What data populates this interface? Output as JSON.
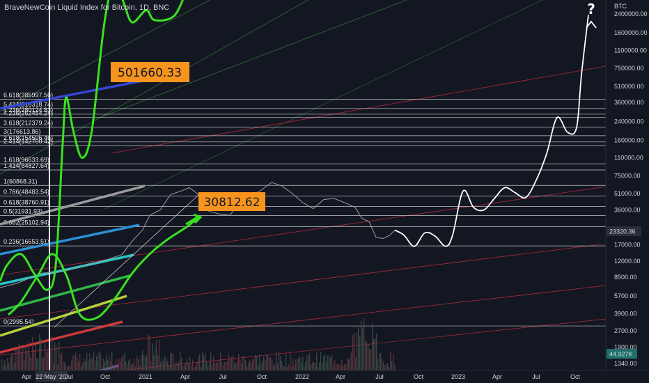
{
  "header": {
    "title": "BraveNewCoin Liquid Index for Bitcoin, 1D, BNC"
  },
  "colors": {
    "background": "#131722",
    "text": "#d1d4dc",
    "fib_line": "#c8c8c8",
    "forecast_white": "#ffffff",
    "forecast_green": "#39e21f",
    "channel_red": "#b22b36",
    "channel_green": "#3b9a3b",
    "price_candles": "#9aa0a6",
    "callout_bg": "#f7941d",
    "price_badge_bg": "#2a2e39",
    "volume_badge_bg": "#1f6f6c"
  },
  "chart_data": {
    "type": "line",
    "y_scale": "log",
    "y_unit": "BTC",
    "x_ticks": [
      "Apr",
      "22 May '20",
      "Jul",
      "Oct",
      "2021",
      "Apr",
      "Jul",
      "Oct",
      "2022",
      "Apr",
      "Jul",
      "Oct",
      "2023",
      "Apr",
      "Jul",
      "Oct"
    ],
    "y_ticks": [
      2400000,
      1600000,
      1100000,
      750000,
      510000,
      360000,
      240000,
      160000,
      110000,
      75000,
      51000,
      36000,
      23320.36,
      17000,
      12000,
      8500,
      5700,
      3900,
      2700,
      1900,
      1340
    ],
    "y_tick_labels": [
      "2400000.00",
      "1600000.00",
      "1100000.00",
      "750000.00",
      "510000.00",
      "360000.00",
      "240000.00",
      "160000.00",
      "110000.00",
      "75000.00",
      "51000.00",
      "36000.00",
      "23320.36",
      "17000.00",
      "12000.00",
      "8500.00",
      "5700.00",
      "3900.00",
      "2700.00",
      "1900.00",
      "1340.00"
    ],
    "current_price": "23320.36",
    "volume_label": "44.927K",
    "fib_levels": [
      {
        "ratio": "6.618",
        "value": 385997.56,
        "label": "6.618(385997.56)"
      },
      {
        "ratio": "5.414",
        "value": 316318.74,
        "label": "5.414(316318.74)"
      },
      {
        "ratio": "4.236",
        "value": 280124.83,
        "label": "4.236(280124.83)"
      },
      {
        "ratio": "4.236",
        "value": 262454.24,
        "label": "4.236(262454.24)"
      },
      {
        "ratio": "3.618",
        "value": 212379.24,
        "label": "3.618(212379.24)"
      },
      {
        "ratio": "3",
        "value": 176613.86,
        "label": "3(176613.86)"
      },
      {
        "ratio": "2.618",
        "value": 154506.46,
        "label": "2.618(154506.46)"
      },
      {
        "ratio": "2.414",
        "value": 142700.42,
        "label": "2.414(142700.42)"
      },
      {
        "ratio": "1.618",
        "value": 96633.69,
        "label": "1.618(96633.69)"
      },
      {
        "ratio": "1.414",
        "value": 84827.64,
        "label": "1.414(84827.64)"
      },
      {
        "ratio": "1",
        "value": 60868.31,
        "label": "1(60868.31)"
      },
      {
        "ratio": "0.786",
        "value": 48483.54,
        "label": "0.786(48483.54)"
      },
      {
        "ratio": "0.618",
        "value": 38760.91,
        "label": "0.618(38760.91)"
      },
      {
        "ratio": "0.5",
        "value": 31931.93,
        "label": "0.5(31931.93)"
      },
      {
        "ratio": "0.382",
        "value": 25102.94,
        "label": "0.382(25102.94)"
      },
      {
        "ratio": "0.236",
        "value": 16653.51,
        "label": "0.236(16653.51)"
      },
      {
        "ratio": "0",
        "value": 2995.54,
        "label": "0(2995.54)"
      }
    ],
    "annotations": [
      {
        "text": "501660.33",
        "value": 501660.33
      },
      {
        "text": "30812.62",
        "value": 30812.62
      },
      {
        "text": "?"
      }
    ],
    "series": [
      {
        "role": "price",
        "points": [
          [
            0,
            6800
          ],
          [
            25,
            7500
          ],
          [
            60,
            9300
          ],
          [
            90,
            9600
          ],
          [
            120,
            10800
          ],
          [
            150,
            12200
          ],
          [
            175,
            13800
          ],
          [
            190,
            18500
          ],
          [
            205,
            23500
          ],
          [
            215,
            32000
          ],
          [
            230,
            36000
          ],
          [
            245,
            50000
          ],
          [
            260,
            54000
          ],
          [
            272,
            58000
          ],
          [
            285,
            50000
          ],
          [
            300,
            35000
          ],
          [
            315,
            33000
          ],
          [
            330,
            32000
          ],
          [
            345,
            43000
          ],
          [
            360,
            48000
          ],
          [
            375,
            55000
          ],
          [
            390,
            65000
          ],
          [
            405,
            60000
          ],
          [
            420,
            51000
          ],
          [
            435,
            42000
          ],
          [
            450,
            37000
          ],
          [
            465,
            45000
          ],
          [
            480,
            46000
          ],
          [
            495,
            42000
          ],
          [
            510,
            38000
          ],
          [
            520,
            30000
          ],
          [
            530,
            28000
          ],
          [
            540,
            20000
          ],
          [
            550,
            19500
          ],
          [
            560,
            21000
          ],
          [
            567,
            23320.36
          ]
        ]
      },
      {
        "role": "forecast-white",
        "points": [
          [
            567,
            23320.36
          ],
          [
            580,
            21000
          ],
          [
            595,
            16500
          ],
          [
            610,
            22000
          ],
          [
            625,
            20500
          ],
          [
            640,
            16500
          ],
          [
            650,
            21000
          ],
          [
            665,
            54000
          ],
          [
            680,
            38000
          ],
          [
            695,
            36000
          ],
          [
            710,
            46000
          ],
          [
            725,
            58000
          ],
          [
            740,
            52000
          ],
          [
            755,
            47000
          ],
          [
            770,
            68000
          ],
          [
            785,
            120000
          ],
          [
            800,
            260000
          ],
          [
            815,
            190000
          ],
          [
            828,
            210000
          ],
          [
            835,
            650000
          ],
          [
            845,
            2350000
          ]
        ]
      },
      {
        "role": "forecast-green-2020",
        "points": [
          [
            0,
            7800
          ],
          [
            10,
            11000
          ],
          [
            30,
            14000
          ],
          [
            50,
            9000
          ],
          [
            68,
            6500
          ],
          [
            80,
            11000
          ],
          [
            90,
            150000
          ],
          [
            95,
            400000
          ],
          [
            105,
            200000
          ],
          [
            118,
            110000
          ],
          [
            132,
            200000
          ],
          [
            150,
            2000000
          ],
          [
            165,
            5000000
          ],
          [
            178,
            3000000
          ],
          [
            190,
            2000000
          ],
          [
            210,
            2600000
          ],
          [
            222,
            2100000
          ],
          [
            250,
            2300000
          ],
          [
            268,
            4000000
          ]
        ]
      },
      {
        "role": "forecast-green-2021",
        "points": [
          [
            12,
            3800
          ],
          [
            30,
            5000
          ],
          [
            55,
            9000
          ],
          [
            75,
            14000
          ],
          [
            95,
            9000
          ],
          [
            115,
            3800
          ],
          [
            140,
            3600
          ],
          [
            165,
            5400
          ],
          [
            190,
            9300
          ],
          [
            215,
            14000
          ],
          [
            240,
            19000
          ],
          [
            268,
            25000
          ],
          [
            285,
            30812.62
          ]
        ]
      }
    ]
  }
}
